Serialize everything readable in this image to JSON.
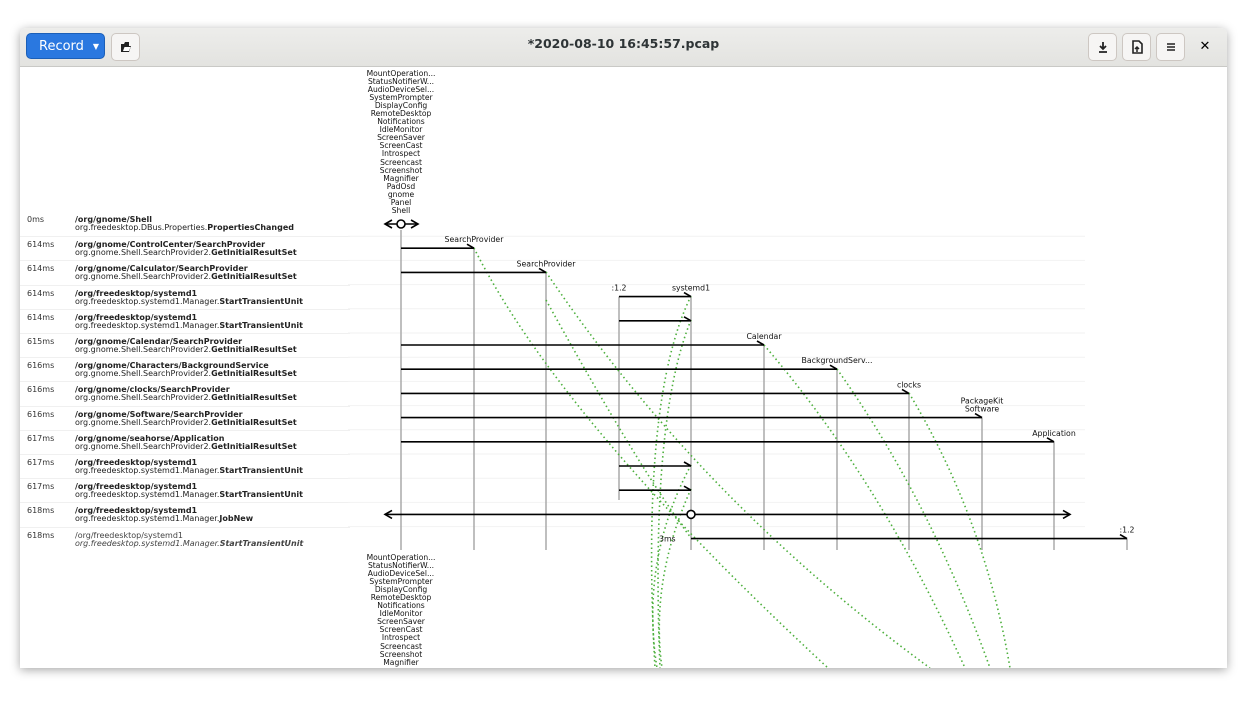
{
  "header": {
    "record_label": "Record",
    "title": "*2020-08-10 16:45:57.pcap"
  },
  "icons": {
    "record_menu": "chevron-down-icon",
    "open": "open-file-icon",
    "save": "download-icon",
    "export": "document-export-icon",
    "menu": "hamburger-menu-icon",
    "close": "close-icon"
  },
  "shell_names": [
    "MountOperation...",
    "StatusNotifierW...",
    "AudioDeviceSel...",
    "SystemPrompter",
    "DisplayConfig",
    "RemoteDesktop",
    "Notifications",
    "IdleMonitor",
    "ScreenSaver",
    "ScreenCast",
    "Introspect",
    "Screencast",
    "Screenshot",
    "Magnifier",
    "PadOsd",
    "gnome",
    "Panel",
    "Shell"
  ],
  "lifelines": [
    {
      "label": "Shell"
    },
    {
      "label": "SearchProvider"
    },
    {
      "label": "SearchProvider"
    },
    {
      "label": ":1.2"
    },
    {
      "label": "systemd1"
    },
    {
      "label": "Calendar"
    },
    {
      "label": "BackgroundServ..."
    },
    {
      "label": "clocks"
    },
    {
      "label": "PackageKit\nSoftware"
    },
    {
      "label": "Application"
    },
    {
      "label": ":1.2"
    }
  ],
  "rows": [
    {
      "time": "0ms",
      "path": "/org/gnome/Shell",
      "iface": "org.freedesktop.DBus.Properties.",
      "member": "PropertiesChanged",
      "from": 0,
      "to": 0,
      "kind": "signal"
    },
    {
      "time": "614ms",
      "path": "/org/gnome/ControlCenter/SearchProvider",
      "iface": "org.gnome.Shell.SearchProvider2.",
      "member": "GetInitialResultSet",
      "from": 0,
      "to": 1
    },
    {
      "time": "614ms",
      "path": "/org/gnome/Calculator/SearchProvider",
      "iface": "org.gnome.Shell.SearchProvider2.",
      "member": "GetInitialResultSet",
      "from": 0,
      "to": 2
    },
    {
      "time": "614ms",
      "path": "/org/freedesktop/systemd1",
      "iface": "org.freedesktop.systemd1.Manager.",
      "member": "StartTransientUnit",
      "from": 3,
      "to": 4
    },
    {
      "time": "614ms",
      "path": "/org/freedesktop/systemd1",
      "iface": "org.freedesktop.systemd1.Manager.",
      "member": "StartTransientUnit",
      "from": 3,
      "to": 4
    },
    {
      "time": "615ms",
      "path": "/org/gnome/Calendar/SearchProvider",
      "iface": "org.gnome.Shell.SearchProvider2.",
      "member": "GetInitialResultSet",
      "from": 0,
      "to": 5
    },
    {
      "time": "616ms",
      "path": "/org/gnome/Characters/BackgroundService",
      "iface": "org.gnome.Shell.SearchProvider2.",
      "member": "GetInitialResultSet",
      "from": 0,
      "to": 6
    },
    {
      "time": "616ms",
      "path": "/org/gnome/clocks/SearchProvider",
      "iface": "org.gnome.Shell.SearchProvider2.",
      "member": "GetInitialResultSet",
      "from": 0,
      "to": 7
    },
    {
      "time": "616ms",
      "path": "/org/gnome/Software/SearchProvider",
      "iface": "org.gnome.Shell.SearchProvider2.",
      "member": "GetInitialResultSet",
      "from": 0,
      "to": 8
    },
    {
      "time": "617ms",
      "path": "/org/gnome/seahorse/Application",
      "iface": "org.gnome.Shell.SearchProvider2.",
      "member": "GetInitialResultSet",
      "from": 0,
      "to": 9
    },
    {
      "time": "617ms",
      "path": "/org/freedesktop/systemd1",
      "iface": "org.freedesktop.systemd1.Manager.",
      "member": "StartTransientUnit",
      "from": 3,
      "to": 4
    },
    {
      "time": "617ms",
      "path": "/org/freedesktop/systemd1",
      "iface": "org.freedesktop.systemd1.Manager.",
      "member": "StartTransientUnit",
      "from": 3,
      "to": 4
    },
    {
      "time": "618ms",
      "path": "/org/freedesktop/systemd1",
      "iface": "org.freedesktop.systemd1.Manager.",
      "member": "JobNew",
      "from": 4,
      "to": 4,
      "kind": "signal"
    },
    {
      "time": "618ms",
      "path": "/org/freedesktop/systemd1",
      "iface": "org.freedesktop.systemd1.Manager.",
      "member": "StartTransientUnit",
      "from": 4,
      "to": 10,
      "kind": "reply",
      "duration": "3ms"
    }
  ],
  "colors": {
    "accent": "#2a78e0",
    "reply_link": "#4caf3c"
  }
}
